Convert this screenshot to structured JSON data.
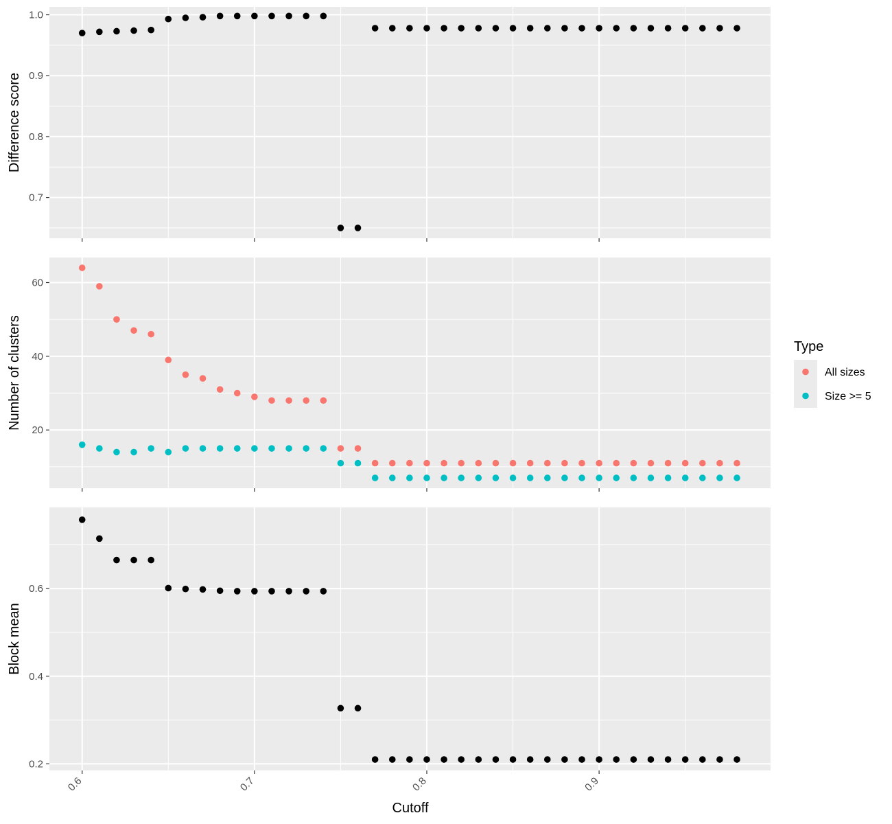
{
  "chart_data": {
    "type": "scatter",
    "xlabel": "Cutoff",
    "x_ticks": [
      0.6,
      0.7,
      0.8,
      0.9
    ],
    "x_tick_labels": [
      "0.6",
      "0.7",
      "0.8",
      "0.9"
    ],
    "xlim": [
      0.581,
      0.9995
    ],
    "grid": true,
    "legend": {
      "title": "Type",
      "placement": "right",
      "entries": [
        {
          "label": "All sizes",
          "color": "#F8766D"
        },
        {
          "label": "Size >= 5",
          "color": "#00BFC4"
        }
      ]
    },
    "x": [
      0.6,
      0.61,
      0.62,
      0.63,
      0.64,
      0.65,
      0.66,
      0.67,
      0.68,
      0.69,
      0.7,
      0.71,
      0.72,
      0.73,
      0.74,
      0.75,
      0.76,
      0.77,
      0.78,
      0.79,
      0.8,
      0.81,
      0.82,
      0.83,
      0.84,
      0.85,
      0.86,
      0.87,
      0.88,
      0.89,
      0.9,
      0.91,
      0.92,
      0.93,
      0.94,
      0.95,
      0.96,
      0.97,
      0.98
    ],
    "panels": [
      {
        "ylabel": "Difference score",
        "ylim": [
          0.633,
          1.013
        ],
        "y_ticks": [
          0.7,
          0.8,
          0.9,
          1.0
        ],
        "y_tick_labels": [
          "0.7",
          "0.8",
          "0.9",
          "1.0"
        ],
        "series": [
          {
            "color": "#000000",
            "values": [
              0.97,
              0.972,
              0.973,
              0.974,
              0.975,
              0.993,
              0.995,
              0.996,
              0.998,
              0.998,
              0.998,
              0.998,
              0.998,
              0.998,
              0.998,
              0.65,
              0.65,
              0.978,
              0.978,
              0.978,
              0.978,
              0.978,
              0.978,
              0.978,
              0.978,
              0.978,
              0.978,
              0.978,
              0.978,
              0.978,
              0.978,
              0.978,
              0.978,
              0.978,
              0.978,
              0.978,
              0.978,
              0.978,
              0.978
            ]
          }
        ]
      },
      {
        "ylabel": "Number of clusters",
        "ylim": [
          4.2,
          66.8
        ],
        "y_ticks": [
          20,
          40,
          60
        ],
        "y_tick_labels": [
          "20",
          "40",
          "60"
        ],
        "series": [
          {
            "name": "All sizes",
            "color": "#F8766D",
            "values": [
              64,
              59,
              50,
              47,
              46,
              39,
              35,
              34,
              31,
              30,
              29,
              28,
              28,
              28,
              28,
              15,
              15,
              11,
              11,
              11,
              11,
              11,
              11,
              11,
              11,
              11,
              11,
              11,
              11,
              11,
              11,
              11,
              11,
              11,
              11,
              11,
              11,
              11,
              11
            ]
          },
          {
            "name": "Size >= 5",
            "color": "#00BFC4",
            "values": [
              16,
              15,
              14,
              14,
              15,
              14,
              15,
              15,
              15,
              15,
              15,
              15,
              15,
              15,
              15,
              11,
              11,
              7,
              7,
              7,
              7,
              7,
              7,
              7,
              7,
              7,
              7,
              7,
              7,
              7,
              7,
              7,
              7,
              7,
              7,
              7,
              7,
              7,
              7
            ]
          }
        ]
      },
      {
        "ylabel": "Block mean",
        "ylim": [
          0.185,
          0.785
        ],
        "y_ticks": [
          0.2,
          0.4,
          0.6
        ],
        "y_tick_labels": [
          "0.2",
          "0.4",
          "0.6"
        ],
        "series": [
          {
            "color": "#000000",
            "values": [
              0.757,
              0.714,
              0.665,
              0.665,
              0.665,
              0.601,
              0.599,
              0.598,
              0.595,
              0.594,
              0.594,
              0.594,
              0.594,
              0.594,
              0.594,
              0.327,
              0.327,
              0.21,
              0.21,
              0.21,
              0.21,
              0.21,
              0.21,
              0.21,
              0.21,
              0.21,
              0.21,
              0.21,
              0.21,
              0.21,
              0.21,
              0.21,
              0.21,
              0.21,
              0.21,
              0.21,
              0.21,
              0.21,
              0.21
            ]
          }
        ]
      }
    ]
  }
}
